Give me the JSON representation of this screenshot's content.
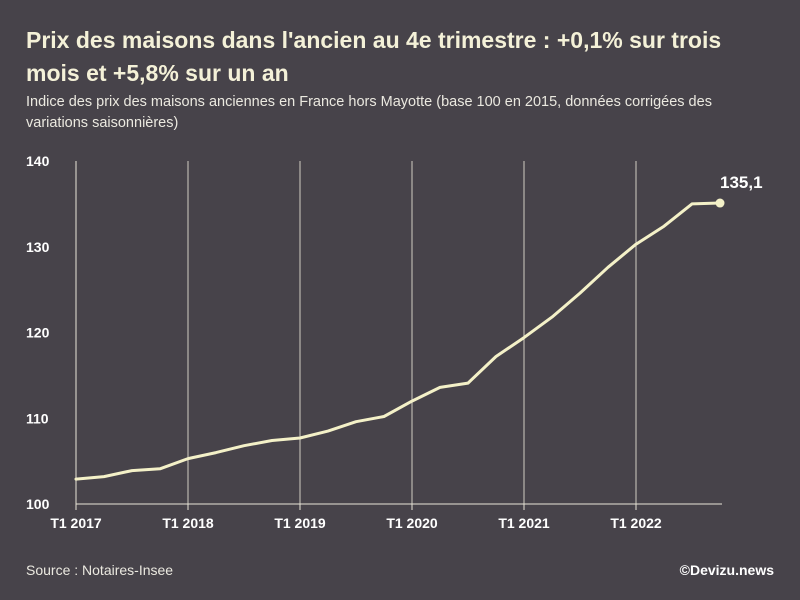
{
  "title": "Prix des maisons dans l'ancien au 4e trimestre : +0,1% sur trois mois et +5,8% sur un an",
  "subtitle": "Indice des prix des maisons anciennes en France hors Mayotte (base 100 en 2015, données corrigées des variations saisonnières)",
  "source": "Source : Notaires-Insee",
  "credit": "©Devizu.news",
  "colors": {
    "background": "#47434a",
    "line": "#f4f1c8",
    "grid": "#e8e6d8",
    "text": "#ffffff"
  },
  "chart_data": {
    "type": "line",
    "title": "",
    "xlabel": "",
    "ylabel": "",
    "ylim": [
      100,
      140
    ],
    "y_ticks": [
      "100",
      "110",
      "120",
      "130",
      "140"
    ],
    "x_ticks": [
      "T1 2017",
      "T1 2018",
      "T1 2019",
      "T1 2020",
      "T1 2021",
      "T1 2022"
    ],
    "grid": "vertical lines at each T1",
    "x": [
      "T1 2017",
      "T2 2017",
      "T3 2017",
      "T4 2017",
      "T1 2018",
      "T2 2018",
      "T3 2018",
      "T4 2018",
      "T1 2019",
      "T2 2019",
      "T3 2019",
      "T4 2019",
      "T1 2020",
      "T2 2020",
      "T3 2020",
      "T4 2020",
      "T1 2021",
      "T2 2021",
      "T3 2021",
      "T4 2021",
      "T1 2022",
      "T2 2022",
      "T3 2022",
      "T4 2022"
    ],
    "values": [
      102.9,
      103.2,
      103.9,
      104.1,
      105.3,
      106.0,
      106.8,
      107.4,
      107.7,
      108.5,
      109.6,
      110.2,
      112.0,
      113.6,
      114.1,
      117.2,
      119.4,
      121.8,
      124.6,
      127.6,
      130.3,
      132.4,
      135.0,
      135.1
    ],
    "end_label": "135,1"
  }
}
